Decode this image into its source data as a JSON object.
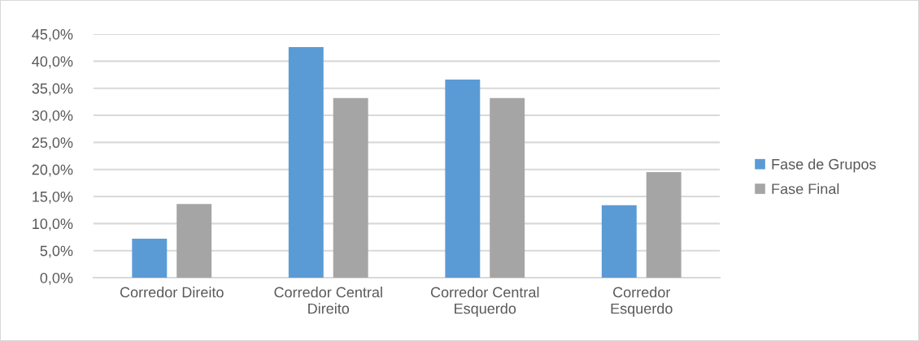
{
  "chart_data": {
    "type": "bar",
    "categories": [
      "Corredor Direito",
      "Corredor Central\nDireito",
      "Corredor Central\nEsquerdo",
      "Corredor\nEsquerdo"
    ],
    "series": [
      {
        "name": "Fase de Grupos",
        "color": "#5b9bd5",
        "values": [
          7.2,
          42.6,
          36.6,
          13.4
        ]
      },
      {
        "name": "Fase Final",
        "color": "#a5a5a5",
        "values": [
          13.6,
          33.2,
          33.2,
          19.5
        ]
      }
    ],
    "ylim": [
      0,
      45
    ],
    "yticks": [
      {
        "value": 0,
        "label": "0,0%"
      },
      {
        "value": 5,
        "label": "5,0%"
      },
      {
        "value": 10,
        "label": "10,0%"
      },
      {
        "value": 15,
        "label": "15,0%"
      },
      {
        "value": 20,
        "label": "20,0%"
      },
      {
        "value": 25,
        "label": "25,0%"
      },
      {
        "value": 30,
        "label": "30,0%"
      },
      {
        "value": 35,
        "label": "35,0%"
      },
      {
        "value": 40,
        "label": "40,0%"
      },
      {
        "value": 45,
        "label": "45,0%"
      }
    ],
    "grid": "y",
    "legend": "right"
  }
}
